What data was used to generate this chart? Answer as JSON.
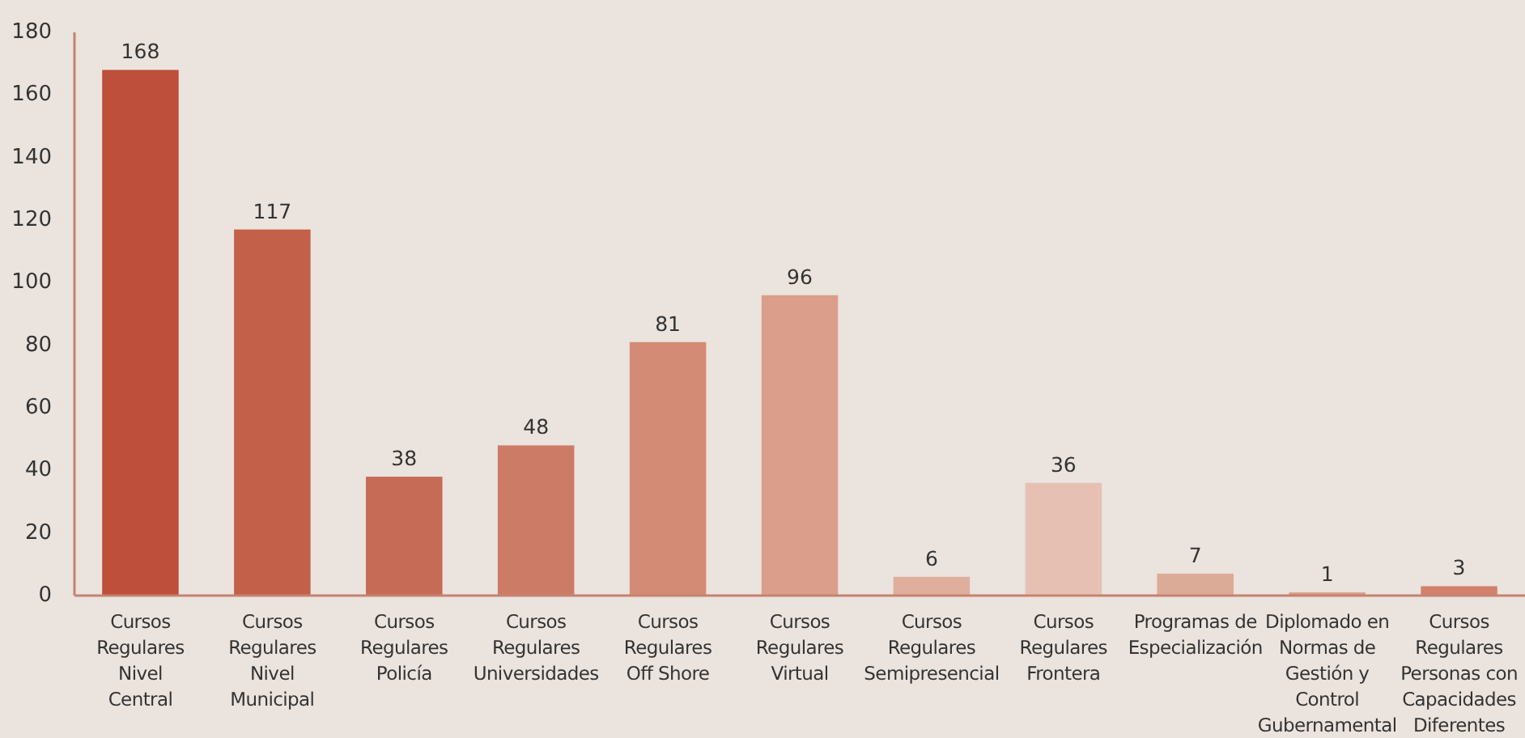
{
  "chart_data": {
    "type": "bar",
    "categories": [
      "Cursos Regulares Nivel Central",
      "Cursos Regulares Nivel Municipal",
      "Cursos Regulares Policía",
      "Cursos Regulares Universidades",
      "Cursos Regulares Off Shore",
      "Cursos Regulares Virtual",
      "Cursos Regulares Semipresencial",
      "Cursos Regulares Frontera",
      "Programas de Especialización",
      "Diplomado en Normas de Gestión y Control Gubernamental",
      "Cursos Regulares Personas con Capacidades Diferentes"
    ],
    "values": [
      168,
      117,
      38,
      48,
      81,
      96,
      6,
      36,
      7,
      1,
      3
    ],
    "colors": [
      "#bd4f3b",
      "#c2604a",
      "#c66b56",
      "#cc7b66",
      "#d48b76",
      "#da9e8a",
      "#dfae9c",
      "#e6c1b3",
      "#dcab98",
      "#d79c89",
      "#d2826c"
    ],
    "ylim": [
      0,
      180
    ],
    "yticks": [
      0,
      20,
      40,
      60,
      80,
      100,
      120,
      140,
      160,
      180
    ],
    "data_labels": true,
    "grid": false,
    "legend": false
  }
}
